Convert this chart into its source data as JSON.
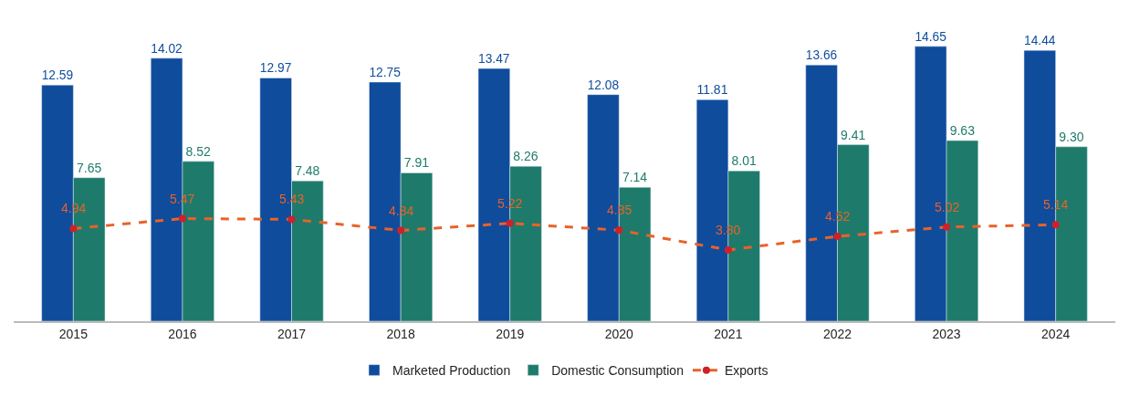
{
  "chart_data": {
    "type": "bar",
    "categories": [
      "2015",
      "2016",
      "2017",
      "2018",
      "2019",
      "2020",
      "2021",
      "2022",
      "2023",
      "2024"
    ],
    "series": [
      {
        "name": "Marketed Production",
        "color": "#0f4c9c",
        "values": [
          12.59,
          14.02,
          12.97,
          12.75,
          13.47,
          12.08,
          11.81,
          13.66,
          14.65,
          14.44
        ],
        "value_labels": [
          "12.59",
          "14.02",
          "12.97",
          "12.75",
          "13.47",
          "12.08",
          "11.81",
          "13.66",
          "14.65",
          "14.44"
        ]
      },
      {
        "name": "Domestic Consumption",
        "color": "#1e7b6b",
        "values": [
          7.65,
          8.52,
          7.48,
          7.91,
          8.26,
          7.14,
          8.01,
          9.41,
          9.63,
          9.3
        ],
        "value_labels": [
          "7.65",
          "8.52",
          "7.48",
          "7.91",
          "8.26",
          "7.14",
          "8.01",
          "9.41",
          "9.63",
          "9.30"
        ]
      },
      {
        "name": "Exports",
        "type": "line",
        "color": "#e8622a",
        "line_style": "dashed",
        "marker": "circle",
        "values": [
          4.94,
          5.47,
          5.43,
          4.84,
          5.22,
          4.85,
          3.8,
          4.52,
          5.02,
          5.14
        ],
        "value_labels": [
          "4.94",
          "5.47",
          "5.43",
          "4.84",
          "5.22",
          "4.85",
          "3.80",
          "4.52",
          "5.02",
          "5.14"
        ]
      }
    ],
    "legend": "bottom"
  }
}
